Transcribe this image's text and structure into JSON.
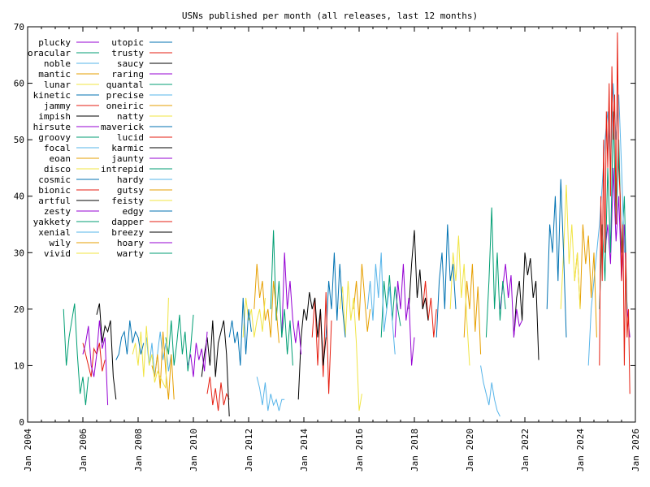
{
  "chart_data": {
    "type": "line",
    "title": "USNs published per month (all releases, last 12 months)",
    "xlabel": "",
    "ylabel": "",
    "xlim": [
      2004,
      2026
    ],
    "ylim": [
      0,
      70
    ],
    "grid": false,
    "legend_position": "top-left",
    "x_ticks": [
      "Jan 2004",
      "Jan 2006",
      "Jan 2008",
      "Jan 2010",
      "Jan 2012",
      "Jan 2014",
      "Jan 2016",
      "Jan 2018",
      "Jan 2020",
      "Jan 2022",
      "Jan 2024",
      "Jan 2026"
    ],
    "y_ticks": [
      0,
      10,
      20,
      30,
      40,
      50,
      60,
      70
    ],
    "series": [
      {
        "name": "plucky",
        "color": "#9400d3",
        "x": [
          2024.9,
          2025.0,
          2025.1,
          2025.2,
          2025.3,
          2025.4,
          2025.5,
          2025.6,
          2025.7,
          2025.8
        ],
        "values": [
          30,
          35,
          28,
          45,
          32,
          40,
          25,
          35,
          20,
          15
        ]
      },
      {
        "name": "oracular",
        "color": "#009e73",
        "x": [
          2024.7,
          2024.8,
          2024.9,
          2025.0,
          2025.1,
          2025.2,
          2025.3,
          2025.4,
          2025.5,
          2025.6,
          2025.7
        ],
        "values": [
          20,
          35,
          25,
          45,
          30,
          55,
          35,
          50,
          30,
          40,
          20
        ]
      },
      {
        "name": "noble",
        "color": "#56b4e9",
        "x": [
          2024.3,
          2024.4,
          2024.5,
          2024.6,
          2024.7,
          2024.8,
          2024.9,
          2025.0,
          2025.1,
          2025.2,
          2025.3,
          2025.4,
          2025.5,
          2025.6
        ],
        "values": [
          10,
          20,
          25,
          30,
          35,
          42,
          50,
          55,
          45,
          60,
          50,
          58,
          45,
          30
        ]
      },
      {
        "name": "mantic",
        "color": "#e69f00",
        "x": [
          2023.8,
          2023.9,
          2024.0,
          2024.1,
          2024.2,
          2024.3,
          2024.4,
          2024.5,
          2024.6
        ],
        "values": [
          25,
          30,
          20,
          35,
          28,
          33,
          22,
          30,
          15
        ]
      },
      {
        "name": "lunar",
        "color": "#f0e442",
        "x": [
          2023.3,
          2023.4,
          2023.5,
          2023.6,
          2023.7,
          2023.8,
          2023.9,
          2024.0
        ],
        "values": [
          20,
          30,
          42,
          28,
          35,
          25,
          30,
          20
        ]
      },
      {
        "name": "kinetic",
        "color": "#0072b2",
        "x": [
          2022.8,
          2022.9,
          2023.0,
          2023.1,
          2023.2,
          2023.3,
          2023.4,
          2023.5
        ],
        "values": [
          20,
          35,
          30,
          40,
          25,
          43,
          30,
          15
        ]
      },
      {
        "name": "jammy",
        "color": "#e51e10",
        "x": [
          2024.7,
          2024.75,
          2024.8,
          2024.85,
          2024.9,
          2024.95,
          2025.0,
          2025.05,
          2025.1,
          2025.15,
          2025.2,
          2025.25,
          2025.3,
          2025.35,
          2025.4,
          2025.45,
          2025.5,
          2025.55,
          2025.6,
          2025.65,
          2025.7,
          2025.75,
          2025.8
        ],
        "values": [
          10,
          40,
          25,
          50,
          30,
          55,
          45,
          60,
          40,
          63,
          50,
          58,
          35,
          69,
          45,
          40,
          25,
          35,
          10,
          30,
          15,
          20,
          5
        ]
      },
      {
        "name": "impish",
        "color": "#000000",
        "x": [
          2021.6,
          2021.7,
          2021.8,
          2021.9,
          2022.0,
          2022.1,
          2022.2,
          2022.3,
          2022.4,
          2022.5
        ],
        "values": [
          15,
          22,
          25,
          18,
          30,
          26,
          29,
          22,
          25,
          11
        ]
      },
      {
        "name": "hirsute",
        "color": "#9400d3",
        "x": [
          2021.1,
          2021.2,
          2021.3,
          2021.4,
          2021.5,
          2021.6,
          2021.7,
          2021.8,
          2021.9
        ],
        "values": [
          20,
          24,
          28,
          22,
          26,
          15,
          20,
          17,
          18
        ]
      },
      {
        "name": "groovy",
        "color": "#009e73",
        "x": [
          2020.6,
          2020.7,
          2020.8,
          2020.9,
          2021.0,
          2021.1,
          2021.2,
          2021.3
        ],
        "values": [
          15,
          25,
          38,
          20,
          30,
          18,
          25,
          20
        ]
      },
      {
        "name": "focal",
        "color": "#56b4e9",
        "x": [
          2020.4,
          2020.5,
          2020.6,
          2020.7,
          2020.8,
          2020.9,
          2021.0,
          2021.1
        ],
        "values": [
          10,
          7,
          5,
          3,
          7,
          4,
          2,
          1
        ]
      },
      {
        "name": "eoan",
        "color": "#e69f00",
        "x": [
          2019.8,
          2019.9,
          2020.0,
          2020.1,
          2020.2,
          2020.3,
          2020.4
        ],
        "values": [
          15,
          25,
          20,
          28,
          16,
          24,
          12
        ]
      },
      {
        "name": "disco",
        "color": "#f0e442",
        "x": [
          2019.3,
          2019.4,
          2019.5,
          2019.6,
          2019.7,
          2019.8,
          2019.9,
          2020.0
        ],
        "values": [
          20,
          30,
          25,
          33,
          22,
          28,
          18,
          10
        ]
      },
      {
        "name": "cosmic",
        "color": "#0072b2",
        "x": [
          2018.8,
          2018.9,
          2019.0,
          2019.1,
          2019.2,
          2019.3,
          2019.4,
          2019.5
        ],
        "values": [
          15,
          25,
          30,
          20,
          35,
          25,
          28,
          20
        ]
      },
      {
        "name": "bionic",
        "color": "#e51e10",
        "x": [
          2018.3,
          2018.4,
          2018.5,
          2018.6,
          2018.7,
          2018.8
        ],
        "values": [
          20,
          25,
          18,
          22,
          15,
          20
        ]
      },
      {
        "name": "artful",
        "color": "#000000",
        "x": [
          2017.8,
          2017.9,
          2018.0,
          2018.1,
          2018.2,
          2018.3,
          2018.4,
          2018.5
        ],
        "values": [
          20,
          28,
          34,
          22,
          27,
          20,
          22,
          18
        ]
      },
      {
        "name": "zesty",
        "color": "#9400d3",
        "x": [
          2017.3,
          2017.4,
          2017.5,
          2017.6,
          2017.7,
          2017.8,
          2017.9,
          2018.0
        ],
        "values": [
          15,
          25,
          20,
          28,
          18,
          22,
          10,
          15
        ]
      },
      {
        "name": "yakkety",
        "color": "#009e73",
        "x": [
          2016.8,
          2016.9,
          2017.0,
          2017.1,
          2017.2,
          2017.3,
          2017.4,
          2017.5
        ],
        "values": [
          15,
          25,
          20,
          26,
          18,
          24,
          20,
          17
        ]
      },
      {
        "name": "xenial",
        "color": "#56b4e9",
        "x": [
          2016.3,
          2016.4,
          2016.5,
          2016.6,
          2016.7,
          2016.8,
          2016.9,
          2017.0,
          2017.1,
          2017.2,
          2017.3
        ],
        "values": [
          20,
          25,
          18,
          28,
          22,
          30,
          16,
          20,
          24,
          18,
          12
        ]
      },
      {
        "name": "wily",
        "color": "#e69f00",
        "x": [
          2015.8,
          2015.9,
          2016.0,
          2016.1,
          2016.2,
          2016.3,
          2016.4
        ],
        "values": [
          20,
          25,
          18,
          28,
          22,
          16,
          20
        ]
      },
      {
        "name": "vivid",
        "color": "#f0e442",
        "x": [
          2015.3,
          2015.4,
          2015.5,
          2015.6,
          2015.7,
          2015.8,
          2015.9,
          2016.0,
          2016.1
        ],
        "values": [
          20,
          24,
          15,
          25,
          18,
          22,
          14,
          2,
          5
        ]
      },
      {
        "name": "utopic",
        "color": "#0072b2",
        "x": [
          2014.8,
          2014.9,
          2015.0,
          2015.1,
          2015.2,
          2015.3,
          2015.4,
          2015.5
        ],
        "values": [
          15,
          25,
          20,
          30,
          18,
          28,
          20,
          15
        ]
      },
      {
        "name": "trusty",
        "color": "#e51e10",
        "x": [
          2014.3,
          2014.4,
          2014.5,
          2014.6,
          2014.7,
          2014.8,
          2014.9,
          2015.0
        ],
        "values": [
          15,
          22,
          10,
          20,
          8,
          23,
          5,
          18
        ]
      },
      {
        "name": "saucy",
        "color": "#000000",
        "x": [
          2013.8,
          2013.9,
          2014.0,
          2014.1,
          2014.2,
          2014.3,
          2014.4,
          2014.5,
          2014.6,
          2014.7,
          2014.8
        ],
        "values": [
          4,
          15,
          20,
          18,
          23,
          20,
          22,
          15,
          20,
          10,
          15
        ]
      },
      {
        "name": "raring",
        "color": "#9400d3",
        "x": [
          2013.2,
          2013.3,
          2013.4,
          2013.5,
          2013.6,
          2013.7,
          2013.8,
          2013.9
        ],
        "values": [
          15,
          30,
          20,
          25,
          18,
          14,
          18,
          12
        ]
      },
      {
        "name": "quantal",
        "color": "#009e73",
        "x": [
          2012.8,
          2012.9,
          2013.0,
          2013.1,
          2013.2,
          2013.3,
          2013.4,
          2013.5,
          2013.6
        ],
        "values": [
          20,
          34,
          18,
          25,
          15,
          20,
          12,
          18,
          10
        ]
      },
      {
        "name": "precise",
        "color": "#56b4e9",
        "x": [
          2012.3,
          2012.4,
          2012.5,
          2012.6,
          2012.7,
          2012.8,
          2012.9,
          2013.0,
          2013.1,
          2013.2,
          2013.3
        ],
        "values": [
          8,
          6,
          3,
          7,
          2,
          5,
          3,
          4,
          2,
          4,
          4
        ]
      },
      {
        "name": "oneiric",
        "color": "#e69f00",
        "x": [
          2012.2,
          2012.3,
          2012.4,
          2012.5,
          2012.6,
          2012.7,
          2012.8,
          2012.9,
          2013.0,
          2013.1
        ],
        "values": [
          20,
          28,
          22,
          25,
          18,
          20,
          15,
          25,
          20,
          14
        ]
      },
      {
        "name": "natty",
        "color": "#f0e442",
        "x": [
          2011.8,
          2011.9,
          2012.0,
          2012.1,
          2012.2,
          2012.3,
          2012.4,
          2012.5,
          2012.6
        ],
        "values": [
          15,
          22,
          18,
          20,
          15,
          18,
          20,
          16,
          22
        ]
      },
      {
        "name": "maverick",
        "color": "#0072b2",
        "x": [
          2011.3,
          2011.4,
          2011.5,
          2011.6,
          2011.7,
          2011.8,
          2011.9,
          2012.0,
          2012.1
        ],
        "values": [
          15,
          18,
          14,
          16,
          10,
          22,
          12,
          20,
          16
        ]
      },
      {
        "name": "lucid",
        "color": "#e51e10",
        "x": [
          2010.5,
          2010.6,
          2010.7,
          2010.8,
          2010.9,
          2011.0,
          2011.1,
          2011.2,
          2011.3
        ],
        "values": [
          5,
          8,
          3,
          6,
          2,
          7,
          3,
          5,
          4
        ]
      },
      {
        "name": "karmic",
        "color": "#000000",
        "x": [
          2010.3,
          2010.4,
          2010.5,
          2010.6,
          2010.7,
          2010.8,
          2010.9,
          2011.0,
          2011.1,
          2011.2,
          2011.3
        ],
        "values": [
          8,
          12,
          15,
          10,
          18,
          8,
          14,
          16,
          18,
          12,
          1
        ]
      },
      {
        "name": "jaunty",
        "color": "#9400d3",
        "x": [
          2009.8,
          2009.9,
          2010.0,
          2010.1,
          2010.2,
          2010.3,
          2010.4,
          2010.5
        ],
        "values": [
          10,
          12,
          8,
          14,
          11,
          13,
          9,
          16
        ]
      },
      {
        "name": "intrepid",
        "color": "#009e73",
        "x": [
          2009.0,
          2009.1,
          2009.2,
          2009.3,
          2009.4,
          2009.5,
          2009.6,
          2009.7,
          2009.8,
          2009.9,
          2010.0
        ],
        "values": [
          15,
          12,
          18,
          10,
          14,
          19,
          12,
          16,
          9,
          13,
          19
        ]
      },
      {
        "name": "hardy",
        "color": "#56b4e9",
        "x": [
          2008.3,
          2008.4,
          2008.5,
          2008.6,
          2008.7,
          2008.8,
          2008.9,
          2009.0,
          2009.1,
          2009.2
        ],
        "values": [
          15,
          10,
          14,
          8,
          12,
          16,
          11,
          14,
          9,
          12
        ]
      },
      {
        "name": "gutsy",
        "color": "#e69f00",
        "x": [
          2008.5,
          2008.6,
          2008.7,
          2008.8,
          2008.9,
          2009.0,
          2009.1,
          2009.2,
          2009.3
        ],
        "values": [
          10,
          8,
          12,
          6,
          16,
          9,
          4,
          12,
          4
        ]
      },
      {
        "name": "feisty",
        "color": "#f0e442",
        "x": [
          2007.8,
          2007.9,
          2008.0,
          2008.1,
          2008.2,
          2008.3,
          2008.4,
          2008.5,
          2008.6,
          2008.7,
          2009.0,
          2009.1
        ],
        "values": [
          12,
          14,
          10,
          16,
          8,
          17,
          10,
          12,
          7,
          9,
          6,
          22
        ]
      },
      {
        "name": "edgy",
        "color": "#0072b2",
        "x": [
          2007.2,
          2007.3,
          2007.4,
          2007.5,
          2007.6,
          2007.7,
          2007.8,
          2007.9,
          2008.0,
          2008.1,
          2008.2
        ],
        "values": [
          11,
          12,
          15,
          16,
          12,
          18,
          14,
          16,
          15,
          12,
          14
        ]
      },
      {
        "name": "dapper",
        "color": "#e51e10",
        "x": [
          2006.0,
          2006.1,
          2006.2,
          2006.3,
          2006.4,
          2006.5,
          2006.6,
          2006.7,
          2006.8
        ],
        "values": [
          14,
          12,
          10,
          8,
          13,
          12,
          14,
          9,
          11
        ]
      },
      {
        "name": "breezy",
        "color": "#000000",
        "x": [
          2006.5,
          2006.6,
          2006.7,
          2006.8,
          2006.9,
          2007.0,
          2007.1,
          2007.2
        ],
        "values": [
          19,
          21,
          14,
          17,
          16,
          18,
          8,
          4
        ]
      },
      {
        "name": "hoary",
        "color": "#9400d3",
        "x": [
          2006.0,
          2006.1,
          2006.2,
          2006.3,
          2006.4,
          2006.5,
          2006.6,
          2006.7,
          2006.8,
          2006.9
        ],
        "values": [
          12,
          14,
          17,
          10,
          8,
          12,
          18,
          13,
          15,
          3
        ]
      },
      {
        "name": "warty",
        "color": "#009e73",
        "x": [
          2005.3,
          2005.4,
          2005.5,
          2005.6,
          2005.7,
          2005.8,
          2005.9,
          2006.0,
          2006.1,
          2006.2
        ],
        "values": [
          20,
          10,
          15,
          18,
          21,
          12,
          5,
          8,
          3,
          8
        ]
      }
    ]
  }
}
